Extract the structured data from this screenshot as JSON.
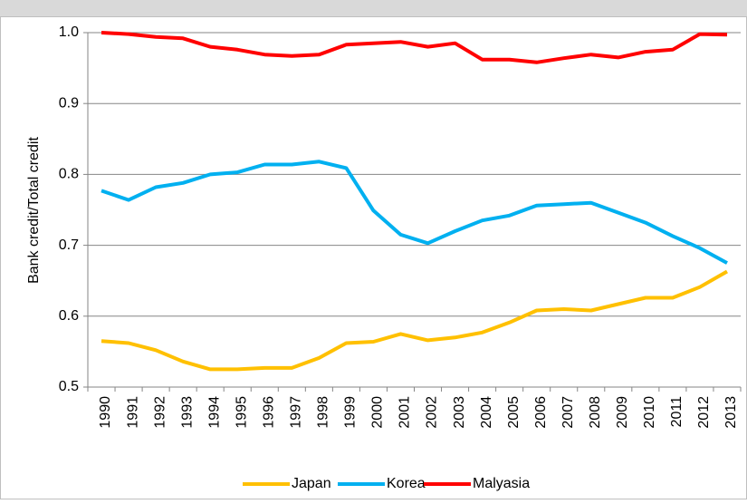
{
  "chart_data": {
    "type": "line",
    "ylabel": "Bank credit/Total credit",
    "categories": [
      "1990",
      "1991",
      "1992",
      "1993",
      "1994",
      "1995",
      "1996",
      "1997",
      "1998",
      "1999",
      "2000",
      "2001",
      "2002",
      "2003",
      "2004",
      "2005",
      "2006",
      "2007",
      "2008",
      "2009",
      "2010",
      "2011",
      "2012",
      "2013"
    ],
    "series": [
      {
        "name": "Japan",
        "color": "#ffc000",
        "values": [
          0.565,
          0.562,
          0.552,
          0.536,
          0.525,
          0.525,
          0.527,
          0.527,
          0.541,
          0.562,
          0.564,
          0.575,
          0.566,
          0.57,
          0.577,
          0.591,
          0.608,
          0.61,
          0.608,
          0.617,
          0.626,
          0.626,
          0.641,
          0.663
        ]
      },
      {
        "name": "Korea",
        "color": "#00b0f0",
        "values": [
          0.777,
          0.764,
          0.782,
          0.788,
          0.8,
          0.803,
          0.814,
          0.814,
          0.818,
          0.809,
          0.749,
          0.715,
          0.703,
          0.72,
          0.735,
          0.742,
          0.756,
          0.758,
          0.76,
          0.746,
          0.732,
          0.713,
          0.696,
          0.675
        ]
      },
      {
        "name": "Malyasia",
        "color": "#ff0000",
        "values": [
          1.0,
          0.998,
          0.994,
          0.992,
          0.98,
          0.976,
          0.969,
          0.967,
          0.969,
          0.983,
          0.985,
          0.987,
          0.98,
          0.985,
          0.962,
          0.962,
          0.958,
          0.964,
          0.969,
          0.965,
          0.973,
          0.976,
          0.998,
          0.997
        ]
      }
    ],
    "ylim": [
      0.5,
      1.0
    ],
    "yticks": [
      0.5,
      0.6,
      0.7,
      0.8,
      0.9,
      {
        "value": 1.0,
        "label": "1.0"
      }
    ],
    "grid": true,
    "legend": "bottom"
  }
}
